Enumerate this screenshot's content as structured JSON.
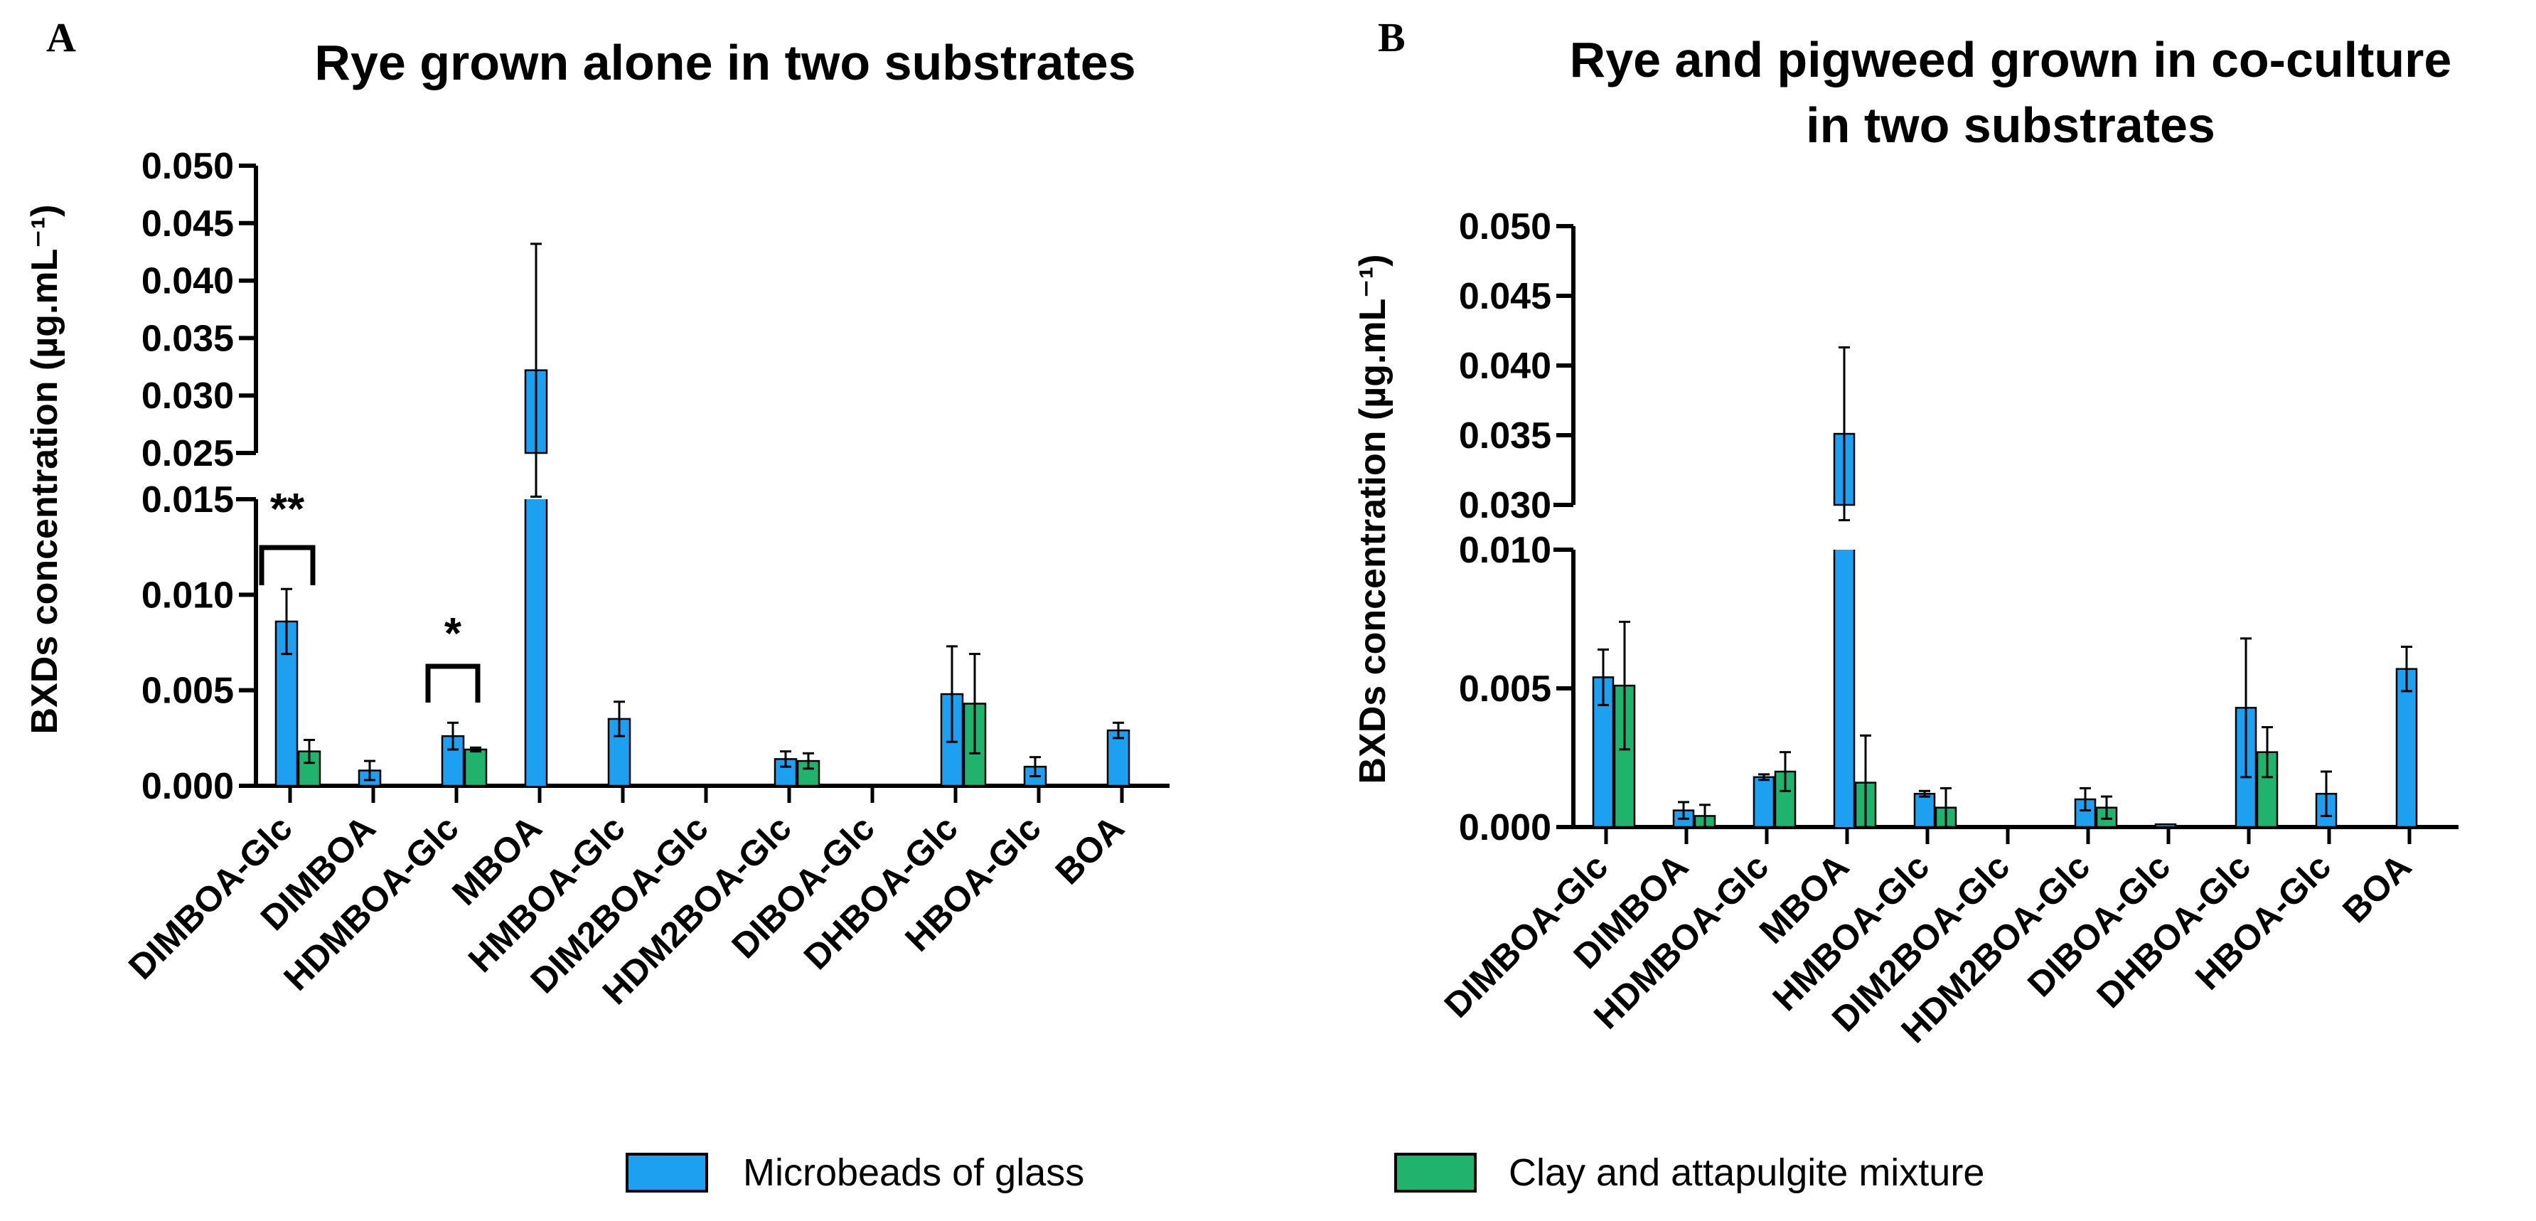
{
  "colors": {
    "microbeads": "#1ea0f0",
    "clay": "#1fb36e",
    "axis": "#000000"
  },
  "legend": [
    {
      "name": "Microbeads of glass",
      "color": "#1ea0f0"
    },
    {
      "name": "Clay and attapulgite mixture",
      "color": "#1fb36e"
    }
  ],
  "chart_data": [
    {
      "panel": "A",
      "type": "bar",
      "title": "Rye grown alone in two substrates",
      "ylabel": "BXDs concentration (µg.mL⁻¹)",
      "ylim_lower": [
        0,
        0.015
      ],
      "ylim_upper": [
        0.025,
        0.05
      ],
      "yticks_lower": [
        "0.000",
        "0.005",
        "0.010",
        "0.015"
      ],
      "yticks_upper": [
        "0.025",
        "0.030",
        "0.035",
        "0.040",
        "0.045",
        "0.050"
      ],
      "categories": [
        "DIMBOA-Glc",
        "DIMBOA",
        "HDMBOA-Glc",
        "MBOA",
        "HMBOA-Glc",
        "DIM2BOA-Glc",
        "HDM2BOA-Glc",
        "DIBOA-Glc",
        "DHBOA-Glc",
        "HBOA-Glc",
        "BOA"
      ],
      "series": [
        {
          "name": "Microbeads of glass",
          "values": [
            0.0086,
            0.0008,
            0.0026,
            0.0322,
            0.0035,
            0,
            0.0014,
            0,
            0.0048,
            0.001,
            0.0029
          ],
          "errors": [
            0.0017,
            0.0005,
            0.0007,
            0.011,
            0.0009,
            0,
            0.0004,
            0,
            0.0025,
            0.0005,
            0.0004
          ]
        },
        {
          "name": "Clay and attapulgite mixture",
          "values": [
            0.0018,
            0,
            0.0019,
            0,
            0,
            0,
            0.0013,
            0,
            0.0043,
            0,
            0
          ],
          "errors": [
            0.0006,
            0,
            0.0001,
            0,
            0,
            0,
            0.0004,
            0,
            0.0026,
            0,
            0
          ]
        }
      ],
      "significance": [
        {
          "category_index": 0,
          "label": "**"
        },
        {
          "category_index": 2,
          "label": "*"
        }
      ]
    },
    {
      "panel": "B",
      "type": "bar",
      "title_line1": "Rye and pigweed grown in co-culture",
      "title_line2": "in two substrates",
      "ylabel": "BXDs concentration (µg.mL⁻¹)",
      "ylim_lower": [
        0,
        0.01
      ],
      "ylim_upper": [
        0.03,
        0.05
      ],
      "yticks_lower": [
        "0.000",
        "0.005",
        "0.010"
      ],
      "yticks_upper": [
        "0.030",
        "0.035",
        "0.040",
        "0.045",
        "0.050"
      ],
      "categories": [
        "DIMBOA-Glc",
        "DIMBOA",
        "HDMBOA-Glc",
        "MBOA",
        "HMBOA-Glc",
        "DIM2BOA-Glc",
        "HDM2BOA-Glc",
        "DIBOA-Glc",
        "DHBOA-Glc",
        "HBOA-Glc",
        "BOA"
      ],
      "series": [
        {
          "name": "Microbeads of glass",
          "values": [
            0.0054,
            0.0006,
            0.0018,
            0.0351,
            0.0012,
            0,
            0.001,
            0.0001,
            0.0043,
            0.0012,
            0.0057
          ],
          "errors": [
            0.001,
            0.0003,
            0.0001,
            0.0062,
            0.0001,
            0,
            0.0004,
            0,
            0.0025,
            0.0008,
            0.0008
          ]
        },
        {
          "name": "Clay and attapulgite mixture",
          "values": [
            0.0051,
            0.0004,
            0.002,
            0.0016,
            0.0007,
            0,
            0.0007,
            0,
            0.0027,
            0,
            0
          ],
          "errors": [
            0.0023,
            0.0004,
            0.0007,
            0.0017,
            0.0007,
            0,
            0.0004,
            0,
            0.0009,
            0,
            0
          ]
        }
      ],
      "significance": []
    }
  ]
}
